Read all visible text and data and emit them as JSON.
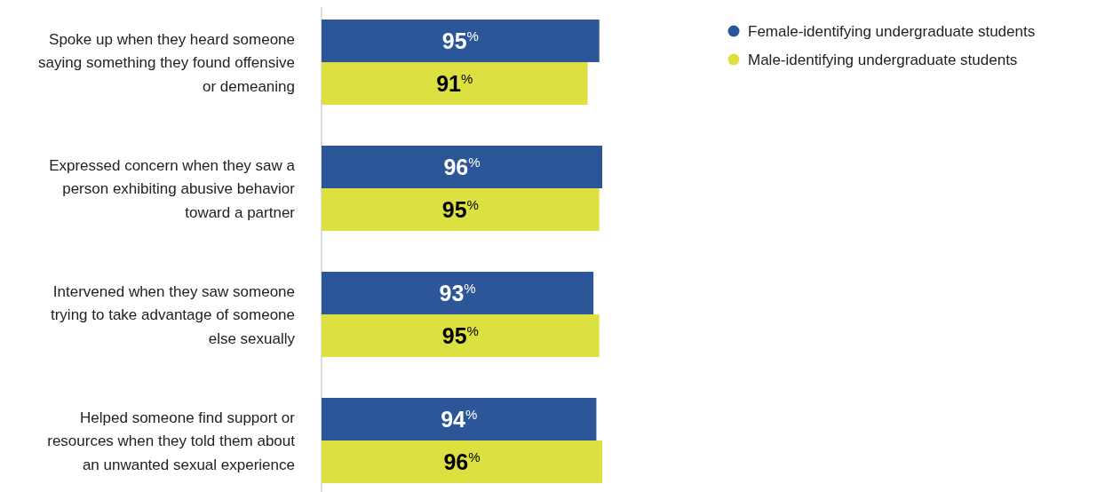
{
  "chart_data": {
    "type": "bar",
    "orientation": "horizontal",
    "relative": false,
    "categories": [
      "Spoke up when they heard someone saying something they found offensive or demeaning",
      "Expressed concern when they saw a person exhibiting abusive behavior toward a partner",
      "Intervened when they saw someone trying to take advantage of someone else sexually",
      "Helped someone find support or resources when they told them about an unwanted sexual experience"
    ],
    "series": [
      {
        "name": "Female-identifying undergraduate students",
        "color": "#2c5697",
        "values": [
          95,
          96,
          93,
          94
        ],
        "value_labels": [
          "95$^{%}$",
          "96$^{%}$",
          "93$^{%}$",
          "94$^{%}$"
        ]
      },
      {
        "name": "Male-identifying undergraduate students",
        "color": "#dce141",
        "values": [
          91,
          95,
          95,
          96
        ],
        "value_labels": [
          "91$^{%}$",
          "95$^{%}$",
          "95$^{%}$",
          "96$^{%}$"
        ]
      }
    ],
    "legend": "top right"
  }
}
